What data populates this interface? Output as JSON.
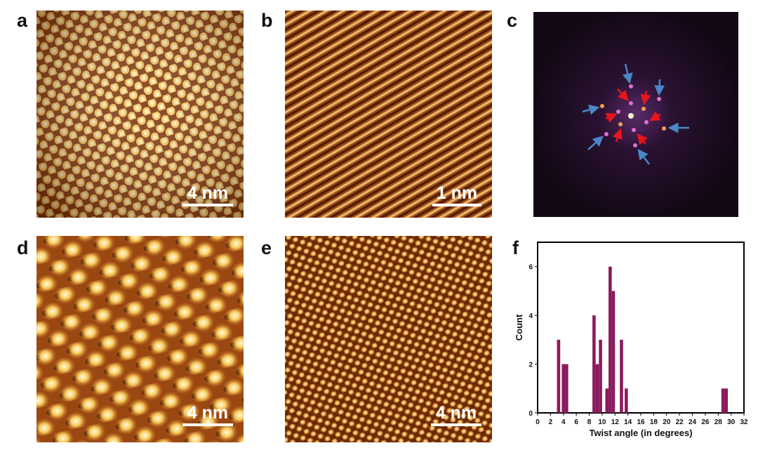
{
  "panels": {
    "a": {
      "label": "a",
      "scalebar": "4 nm"
    },
    "b": {
      "label": "b",
      "scalebar": "1 nm"
    },
    "c": {
      "label": "c"
    },
    "d": {
      "label": "d",
      "scalebar": "4 nm"
    },
    "e": {
      "label": "e",
      "scalebar": "4 nm"
    },
    "f": {
      "label": "f"
    }
  },
  "colors": {
    "stm_dark": "#3a1200",
    "stm_mid": "#c56a1c",
    "stm_bright": "#fff0b0",
    "fft_bg": "#1a0a22",
    "red_arrow": "#e8141c",
    "blue_arrow": "#4a86c8",
    "bar": "#8b1a5c"
  },
  "chart_data": {
    "type": "bar",
    "xlabel": "Twist angle (in degrees)",
    "ylabel": "Count",
    "xlim": [
      0,
      32
    ],
    "ylim": [
      0,
      7
    ],
    "xticks": [
      0,
      2,
      4,
      6,
      8,
      10,
      12,
      14,
      16,
      18,
      20,
      22,
      24,
      26,
      28,
      30,
      32
    ],
    "yticks": [
      0,
      2,
      4,
      6
    ],
    "grid": false,
    "bin_width": 0.5,
    "x": [
      3.25,
      4.0,
      4.5,
      8.75,
      9.25,
      9.75,
      10.75,
      11.25,
      11.75,
      13.0,
      13.75,
      28.75,
      29.25
    ],
    "values": [
      3,
      2,
      2,
      4,
      2,
      3,
      1,
      6,
      5,
      3,
      1,
      1,
      1
    ]
  }
}
